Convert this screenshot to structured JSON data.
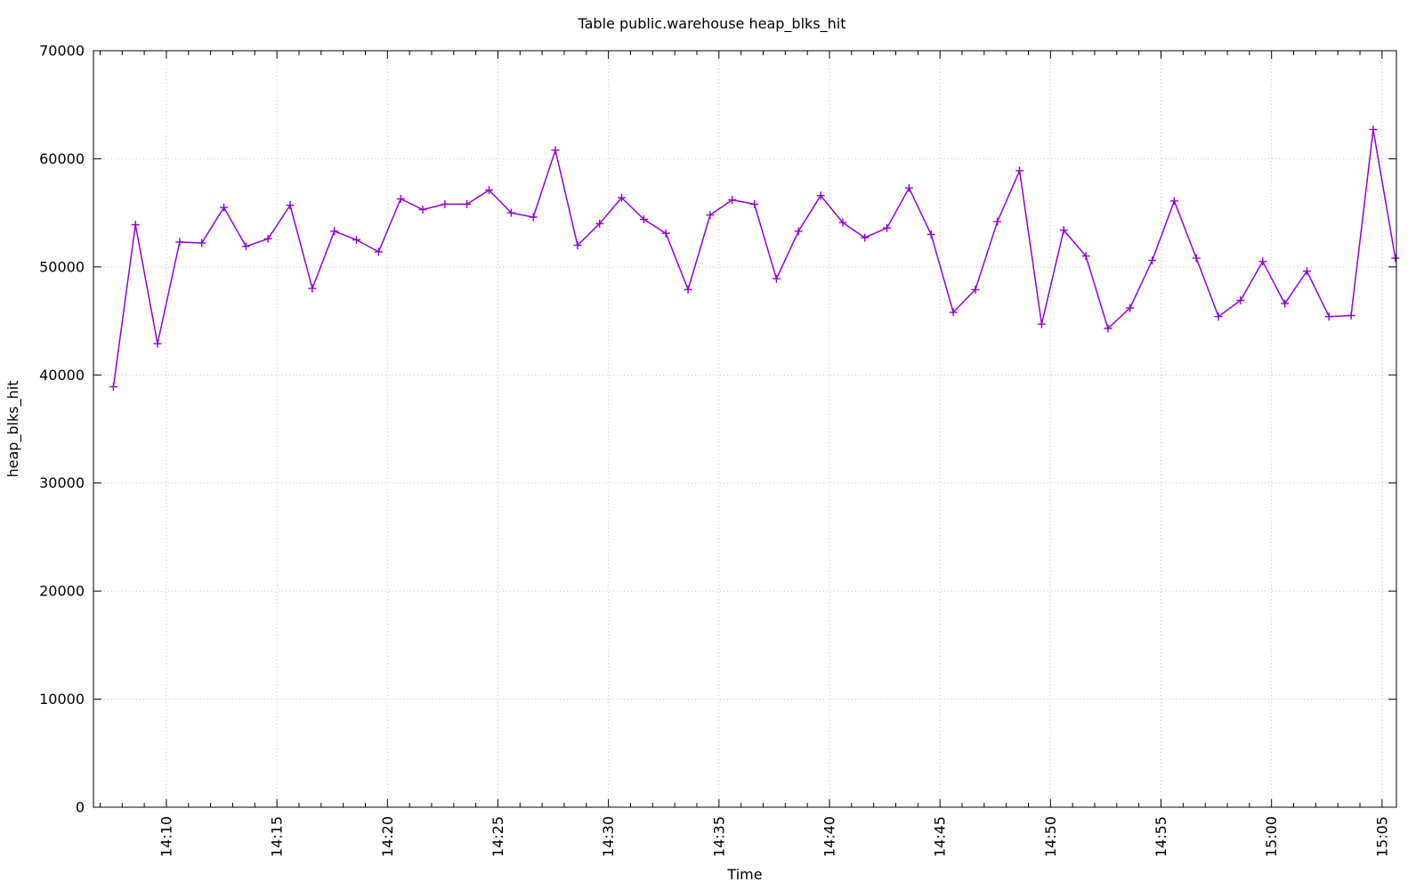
{
  "page": {
    "background_color": "#ffffff",
    "kind": "gnuplot-style monitoring graph"
  },
  "chart_data": {
    "type": "line",
    "title": "Table public.warehouse heap_blks_hit",
    "xlabel": "Time",
    "ylabel": "heap_blks_hit",
    "legend": "none",
    "grid": {
      "visible": true,
      "style": "dotted",
      "color": "#c4c4c4"
    },
    "axis_color": "#000000",
    "x_axis": {
      "unit": "clock time (HH:MM)",
      "range_minutes_after_1400": [
        6.7,
        65.65
      ],
      "major_tick_minutes_after_1400": [
        10,
        15,
        20,
        25,
        30,
        35,
        40,
        45,
        50,
        55,
        60,
        65
      ],
      "major_tick_labels": [
        "14:10",
        "14:15",
        "14:20",
        "14:25",
        "14:30",
        "14:35",
        "14:40",
        "14:45",
        "14:50",
        "14:55",
        "15:00",
        "15:05"
      ],
      "minor_tick_step_minutes": 1,
      "tick_label_rotation_deg": -90
    },
    "y_axis": {
      "range": [
        0,
        70000
      ],
      "major_tick_step": 10000,
      "tick_labels": [
        "0",
        "10000",
        "20000",
        "30000",
        "40000",
        "50000",
        "60000",
        "70000"
      ]
    },
    "series": [
      {
        "name": "heap_blks_hit",
        "color": "#9400d3",
        "marker": "plus",
        "x_minutes_after_1400": [
          7.6,
          8.6,
          9.6,
          10.6,
          11.6,
          12.6,
          13.6,
          14.6,
          15.6,
          16.6,
          17.6,
          18.6,
          19.6,
          20.6,
          21.6,
          22.6,
          23.6,
          24.6,
          25.6,
          26.6,
          27.6,
          28.6,
          29.6,
          30.6,
          31.6,
          32.6,
          33.6,
          34.6,
          35.6,
          36.6,
          37.6,
          38.6,
          39.6,
          40.6,
          41.6,
          42.6,
          43.6,
          44.6,
          45.6,
          46.6,
          47.6,
          48.6,
          49.6,
          50.6,
          51.6,
          52.6,
          53.6,
          54.6,
          55.6,
          56.6,
          57.6,
          58.6,
          59.6,
          60.6,
          61.6,
          62.6,
          63.6,
          64.6,
          65.6
        ],
        "values": [
          38900,
          53900,
          42900,
          52300,
          52200,
          55500,
          51900,
          52600,
          55700,
          48000,
          53300,
          52500,
          51400,
          56300,
          55300,
          55800,
          55800,
          57100,
          55000,
          54600,
          60800,
          52000,
          54000,
          56400,
          54400,
          53100,
          47900,
          54800,
          56200,
          55800,
          48900,
          53300,
          56600,
          54100,
          52700,
          53600,
          57300,
          53000,
          45800,
          47900,
          54200,
          58900,
          44700,
          53400,
          51000,
          44300,
          46200,
          50600,
          56100,
          50800,
          45400,
          46900,
          50500,
          46600,
          49600,
          45400,
          45500,
          62700,
          50800
        ]
      }
    ]
  }
}
